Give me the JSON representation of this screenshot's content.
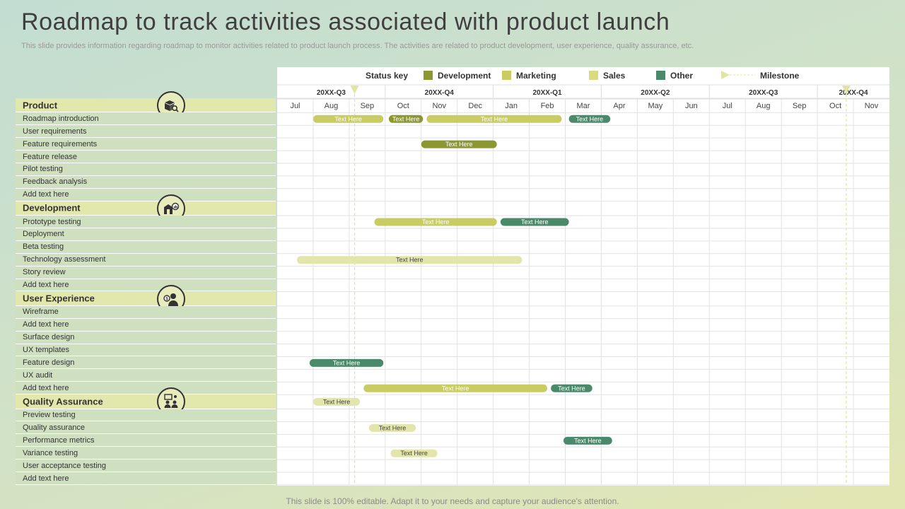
{
  "title": "Roadmap to track activities associated with product launch",
  "subtitle": "This slide provides information regarding roadmap to monitor activities related to product launch process. The activities are related to product development, user experience, quality assurance, etc.",
  "footer": "This slide is 100% editable. Adapt it to your needs and capture your audience's attention.",
  "colors": {
    "development": "#8d9731",
    "marketing": "#c8cc63",
    "sales": "#e2e6ab",
    "other": "#4a8a6a",
    "milestone": "#e0e6a0",
    "category_row": "#e2e7ab",
    "item_row": "#cfe0c0"
  },
  "legend": {
    "status_key": "Status key",
    "items": [
      {
        "label": "Development",
        "color": "#8d9731"
      },
      {
        "label": "Marketing",
        "color": "#c8cc63"
      },
      {
        "label": "Sales",
        "color": "#d8dc7c"
      },
      {
        "label": "Other",
        "color": "#4a8a6a"
      }
    ],
    "milestone": "Milestone"
  },
  "quarters": [
    {
      "label": "20XX-Q3",
      "months": 3
    },
    {
      "label": "20XX-Q4",
      "months": 3
    },
    {
      "label": "20XX-Q1",
      "months": 3
    },
    {
      "label": "20XX-Q2",
      "months": 3
    },
    {
      "label": "20XX-Q3",
      "months": 3
    },
    {
      "label": "20XX-Q4",
      "months": 2
    }
  ],
  "months": [
    "Jul",
    "Aug",
    "Sep",
    "Oct",
    "Nov",
    "Dec",
    "Jan",
    "Feb",
    "Mar",
    "Apr",
    "May",
    "Jun",
    "Jul",
    "Aug",
    "Sep",
    "Oct",
    "Nov"
  ],
  "milestones": [
    2.15,
    15.8
  ],
  "rows": [
    {
      "type": "category",
      "label": "Product",
      "icon": "box-search-icon"
    },
    {
      "type": "item",
      "label": "Roadmap introduction"
    },
    {
      "type": "item",
      "label": "User requirements"
    },
    {
      "type": "item",
      "label": "Feature requirements"
    },
    {
      "type": "item",
      "label": "Feature release"
    },
    {
      "type": "item",
      "label": "Pilot  testing"
    },
    {
      "type": "item",
      "label": "Feedback analysis"
    },
    {
      "type": "item",
      "label": "Add text here"
    },
    {
      "type": "category",
      "label": "Development",
      "icon": "box-chart-icon"
    },
    {
      "type": "item",
      "label": "Prototype testing"
    },
    {
      "type": "item",
      "label": "Deployment"
    },
    {
      "type": "item",
      "label": "Beta testing"
    },
    {
      "type": "item",
      "label": "Technology assessment"
    },
    {
      "type": "item",
      "label": "Story review"
    },
    {
      "type": "item",
      "label": "Add text here"
    },
    {
      "type": "category",
      "label": "User Experience",
      "icon": "user-dollar-icon"
    },
    {
      "type": "item",
      "label": "Wireframe"
    },
    {
      "type": "item",
      "label": "Add text here"
    },
    {
      "type": "item",
      "label": "Surface design"
    },
    {
      "type": "item",
      "label": "UX templates"
    },
    {
      "type": "item",
      "label": "Feature design"
    },
    {
      "type": "item",
      "label": "UX audit"
    },
    {
      "type": "item",
      "label": "Add text here"
    },
    {
      "type": "category",
      "label": "Quality Assurance",
      "icon": "team-icon"
    },
    {
      "type": "item",
      "label": "Preview testing"
    },
    {
      "type": "item",
      "label": "Quality assurance"
    },
    {
      "type": "item",
      "label": "Performance metrics"
    },
    {
      "type": "item",
      "label": "Variance testing"
    },
    {
      "type": "item",
      "label": "User acceptance testing"
    },
    {
      "type": "item",
      "label": "Add text here"
    }
  ],
  "bars": [
    {
      "row": 1,
      "start": 1.0,
      "end": 2.95,
      "status": "marketing",
      "label": "Text Here"
    },
    {
      "row": 1,
      "start": 3.1,
      "end": 4.05,
      "status": "development",
      "label": "Text Here"
    },
    {
      "row": 1,
      "start": 4.15,
      "end": 7.9,
      "status": "marketing",
      "label": "Text Here"
    },
    {
      "row": 1,
      "start": 8.1,
      "end": 9.25,
      "status": "other",
      "label": "Text Here"
    },
    {
      "row": 3,
      "start": 4.0,
      "end": 6.1,
      "status": "development",
      "label": "Text Here"
    },
    {
      "row": 9,
      "start": 2.7,
      "end": 6.1,
      "status": "marketing",
      "label": "Text Here"
    },
    {
      "row": 9,
      "start": 6.2,
      "end": 8.1,
      "status": "other",
      "label": "Text Here"
    },
    {
      "row": 12,
      "start": 0.55,
      "end": 6.8,
      "status": "sales",
      "label": "Text Here"
    },
    {
      "row": 20,
      "start": 0.9,
      "end": 2.95,
      "status": "other",
      "label": "Text Here"
    },
    {
      "row": 22,
      "start": 2.4,
      "end": 7.5,
      "status": "marketing",
      "label": "Text Here"
    },
    {
      "row": 22,
      "start": 7.6,
      "end": 8.75,
      "status": "other",
      "label": "Text Here"
    },
    {
      "row": 23,
      "start": 1.0,
      "end": 2.3,
      "status": "sales",
      "label": "Text Here"
    },
    {
      "row": 25,
      "start": 2.55,
      "end": 3.85,
      "status": "sales",
      "label": "Text Here"
    },
    {
      "row": 26,
      "start": 7.95,
      "end": 9.3,
      "status": "other",
      "label": "Text Here"
    },
    {
      "row": 27,
      "start": 3.15,
      "end": 4.45,
      "status": "sales",
      "label": "Text Here"
    }
  ]
}
